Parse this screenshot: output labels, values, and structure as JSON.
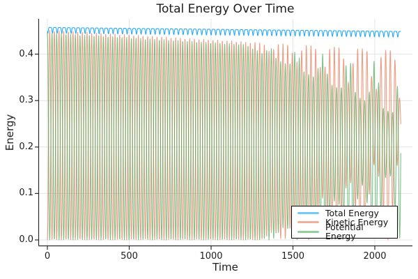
{
  "chart_data": {
    "type": "line",
    "title": "Total Energy Over Time",
    "xlabel": "Time",
    "ylabel": "Energy",
    "xlim": [
      -55,
      2230
    ],
    "ylim": [
      -0.013,
      0.476
    ],
    "grid": true,
    "legend_position": "bottom-right",
    "x_ticks": {
      "values": [
        0,
        500,
        1000,
        1500,
        2000
      ],
      "labels": [
        "0",
        "500",
        "1000",
        "1500",
        "2000"
      ]
    },
    "y_ticks": {
      "values": [
        0,
        0.1,
        0.2,
        0.3,
        0.4
      ],
      "labels": [
        "0.0",
        "0.1",
        "0.2",
        "0.3",
        "0.4"
      ]
    },
    "colors": {
      "background": "#FFFFFF",
      "grid": "#E4E4E4",
      "axis": "#2B2B2B",
      "text": "#1C1C1C",
      "legend_border": "#000000"
    },
    "series": [
      {
        "name": "Total Energy",
        "color": "#009AF9",
        "alpha": 0.85,
        "description": "nearly constant, ~0.457 declining to ~0.449 by t=2150, with a narrow dip of ~0.013 once per oscillation cycle"
      },
      {
        "name": "Kinetic Energy",
        "color": "#E36F47",
        "alpha": 0.68,
        "description": "fast oscillation between envelopes; peaks ~0.452 declining to ~0.407; after t~1300 minima beat upward to a bound rising to ~0.20 by t=2150"
      },
      {
        "name": "Potential Energy",
        "color": "#3DA44E",
        "alpha": 0.68,
        "description": "oscillates out of phase with kinetic; peak envelope declines from ~0.446 to ~0.27 after t~1200, with periodic tall peaks ~0.41 at the beat period"
      }
    ],
    "oscillation": {
      "fast_period": 28.5,
      "beat_period": 160,
      "t_start": 0,
      "t_end": 2160,
      "sample_step": 1.4
    },
    "envelopes": {
      "t": [
        0,
        250,
        500,
        750,
        1000,
        1250,
        1500,
        1750,
        2000,
        2150
      ],
      "total": [
        0.458,
        0.457,
        0.456,
        0.455,
        0.454,
        0.453,
        0.452,
        0.451,
        0.45,
        0.449
      ],
      "kinetic_peak": [
        0.452,
        0.447,
        0.442,
        0.436,
        0.431,
        0.426,
        0.421,
        0.415,
        0.41,
        0.407
      ],
      "potential_peak_low": [
        0.446,
        0.441,
        0.436,
        0.43,
        0.425,
        0.418,
        0.378,
        0.337,
        0.296,
        0.272
      ],
      "minima_upper_bound": [
        0,
        0,
        0,
        0,
        0,
        0,
        0.047,
        0.106,
        0.165,
        0.2
      ]
    },
    "model": {
      "fast_period": 28.5,
      "beat_period": 160,
      "total_base": 0.4575,
      "total_slope": -4e-06,
      "total_dip": 0.0125,
      "total_dip_sharpness": 5,
      "total_dip_phase": -0.6,
      "k_peak0": 0.452,
      "k_peak_slope": -2.1e-05,
      "desc_depth": 0.135,
      "desc_start": 1200,
      "desc_len": 950,
      "ke_beat_dip": 0.11,
      "pe_peak_offset": 0.006,
      "pe_tall_frac": 0.85,
      "min_start": 1300,
      "min_len": 850,
      "k_min_max": 0.2,
      "p_min_max": 0.16,
      "step": 1.4,
      "t_end": 2160
    }
  }
}
